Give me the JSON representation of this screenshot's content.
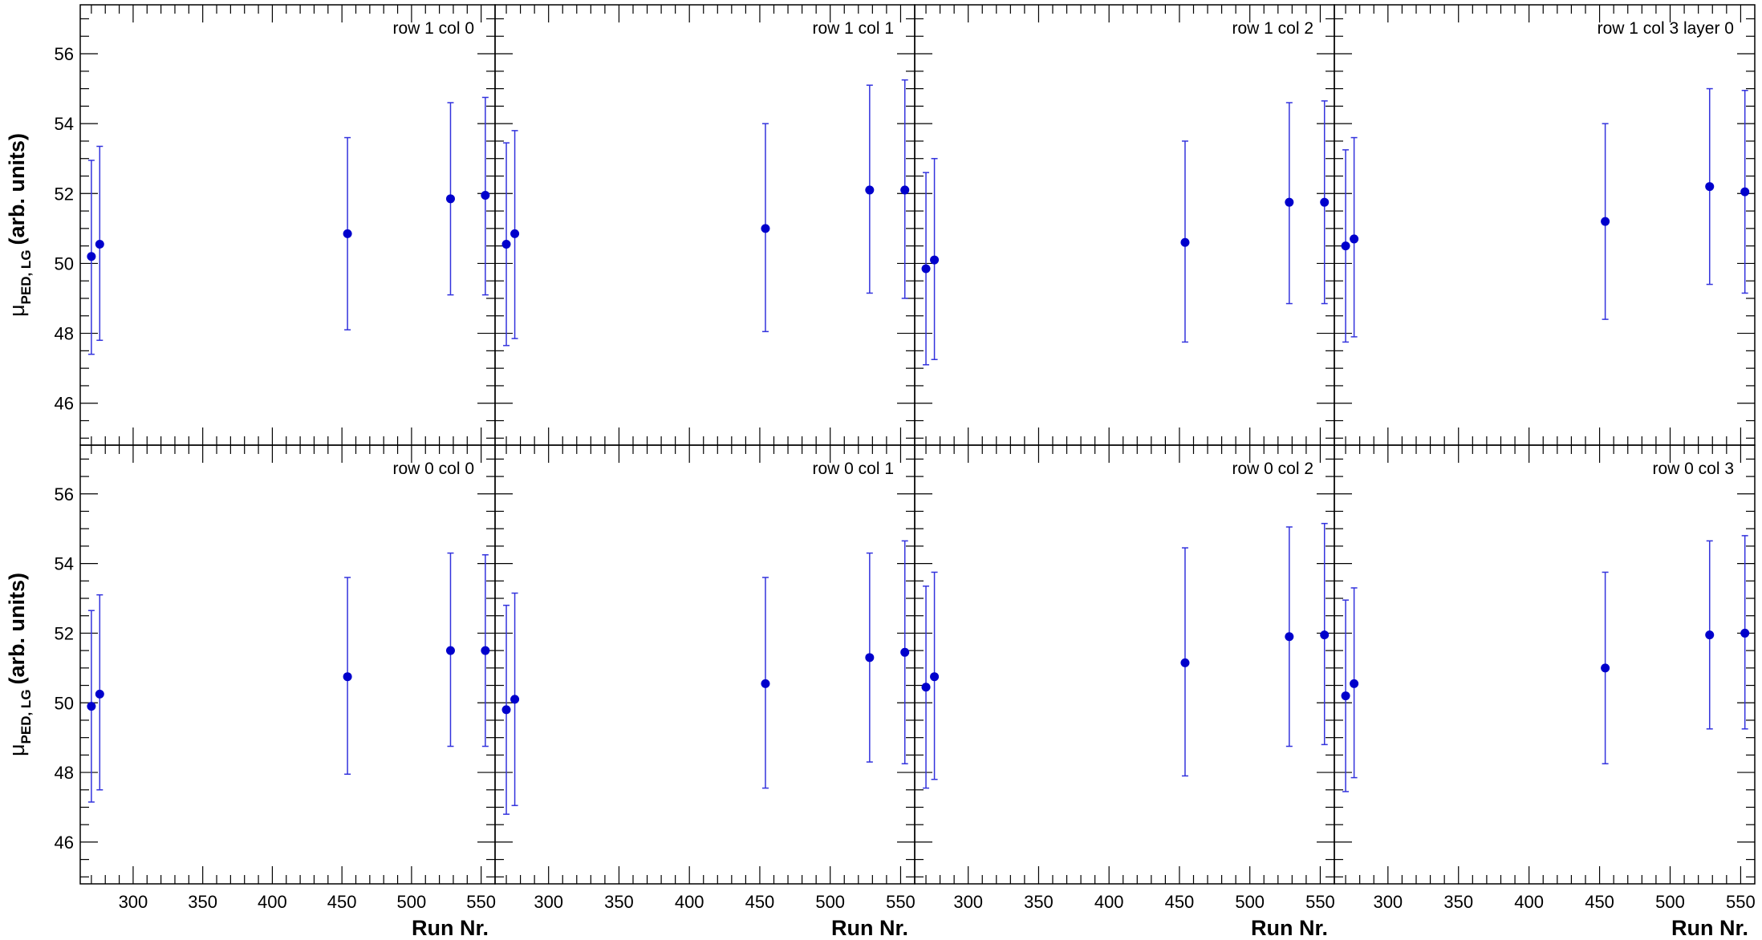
{
  "chart_data": {
    "type": "scatter",
    "layout": "2x4 grid of panels with shared axes",
    "xlabel": "Run Nr.",
    "ylabel_main": "μ",
    "ylabel_sub": "PED, LG",
    "ylabel_tail": "(arb. units)",
    "xlim": [
      262,
      560
    ],
    "ylim": [
      44.8,
      57.4
    ],
    "x_ticks": [
      300,
      350,
      400,
      450,
      500,
      550
    ],
    "y_ticks": [
      46,
      48,
      50,
      52,
      54,
      56
    ],
    "runs": [
      270,
      276,
      454,
      528,
      553
    ],
    "marker_color": "#0000cc",
    "errorbar_color": "#3333dd",
    "panels": [
      {
        "label": "row 1 col 0",
        "row": 0,
        "col": 0,
        "x": [
          270,
          276,
          454,
          528,
          553
        ],
        "y": [
          50.2,
          50.55,
          50.85,
          51.85,
          51.95
        ],
        "yerr_low": [
          47.4,
          47.8,
          48.1,
          49.1,
          49.1
        ],
        "yerr_high": [
          52.95,
          53.35,
          53.6,
          54.6,
          54.75
        ]
      },
      {
        "label": "row 1 col 1",
        "row": 0,
        "col": 1,
        "x": [
          270,
          276,
          454,
          528,
          553
        ],
        "y": [
          50.55,
          50.85,
          51.0,
          52.1,
          52.1
        ],
        "yerr_low": [
          47.65,
          47.85,
          48.05,
          49.15,
          49.0
        ],
        "yerr_high": [
          53.45,
          53.8,
          54.0,
          55.1,
          55.25
        ]
      },
      {
        "label": "row 1 col 2",
        "row": 0,
        "col": 2,
        "x": [
          270,
          276,
          454,
          528,
          553
        ],
        "y": [
          49.85,
          50.1,
          50.6,
          51.75,
          51.75
        ],
        "yerr_low": [
          47.1,
          47.25,
          47.75,
          48.85,
          48.85
        ],
        "yerr_high": [
          52.6,
          53.0,
          53.5,
          54.6,
          54.65
        ]
      },
      {
        "label": "row 1 col 3 layer 0",
        "row": 0,
        "col": 3,
        "x": [
          270,
          276,
          454,
          528,
          553
        ],
        "y": [
          50.5,
          50.7,
          51.2,
          52.2,
          52.05
        ],
        "yerr_low": [
          47.75,
          47.9,
          48.4,
          49.4,
          49.15
        ],
        "yerr_high": [
          53.25,
          53.6,
          54.0,
          55.0,
          54.95
        ]
      },
      {
        "label": "row 0 col 0",
        "row": 1,
        "col": 0,
        "x": [
          270,
          276,
          454,
          528,
          553
        ],
        "y": [
          49.9,
          50.25,
          50.75,
          51.5,
          51.5
        ],
        "yerr_low": [
          47.15,
          47.5,
          47.95,
          48.75,
          48.75
        ],
        "yerr_high": [
          52.65,
          53.1,
          53.6,
          54.3,
          54.25
        ]
      },
      {
        "label": "row 0 col 1",
        "row": 1,
        "col": 1,
        "x": [
          270,
          276,
          454,
          528,
          553
        ],
        "y": [
          49.8,
          50.1,
          50.55,
          51.3,
          51.45
        ],
        "yerr_low": [
          46.8,
          47.05,
          47.55,
          48.3,
          48.25
        ],
        "yerr_high": [
          52.8,
          53.15,
          53.6,
          54.3,
          54.65
        ]
      },
      {
        "label": "row 0 col 2",
        "row": 1,
        "col": 2,
        "x": [
          270,
          276,
          454,
          528,
          553
        ],
        "y": [
          50.45,
          50.75,
          51.15,
          51.9,
          51.95
        ],
        "yerr_low": [
          47.55,
          47.8,
          47.9,
          48.75,
          48.8
        ],
        "yerr_high": [
          53.35,
          53.75,
          54.45,
          55.05,
          55.15
        ]
      },
      {
        "label": "row 0 col 3",
        "row": 1,
        "col": 3,
        "x": [
          270,
          276,
          454,
          528,
          553
        ],
        "y": [
          50.2,
          50.55,
          51.0,
          51.95,
          52.0
        ],
        "yerr_low": [
          47.45,
          47.85,
          48.25,
          49.25,
          49.25
        ],
        "yerr_high": [
          52.95,
          53.3,
          53.75,
          54.65,
          54.8
        ]
      }
    ]
  }
}
